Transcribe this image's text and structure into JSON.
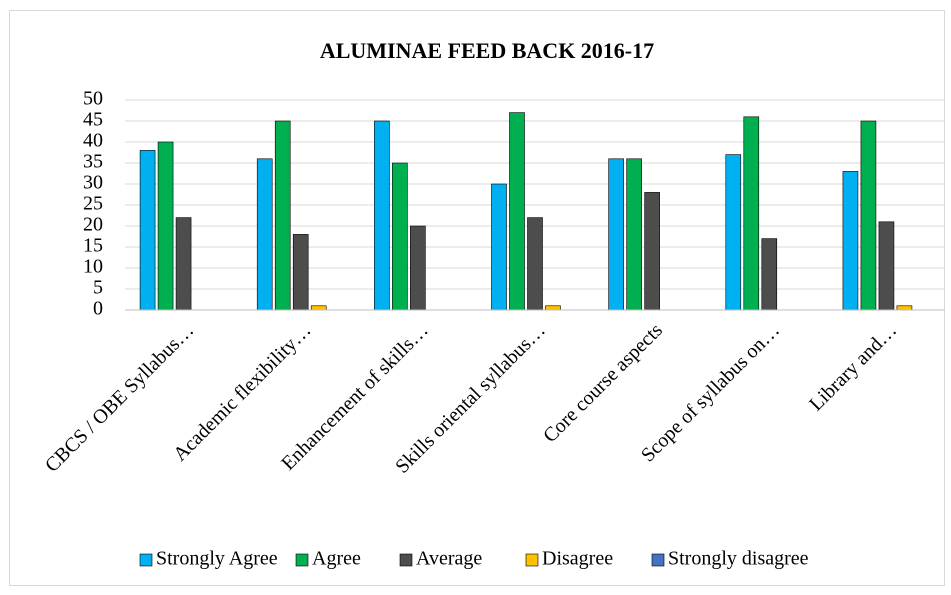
{
  "chart_data": {
    "type": "bar",
    "title": "ALUMINAE FEED BACK 2016-17",
    "categories": [
      "CBCS / OBE Syllabus…",
      "Academic flexibility…",
      "Enhancement of skills…",
      "Skills oriental syllabus…",
      "Core course aspects",
      "Scope of syllabus on…",
      "Library and…"
    ],
    "series": [
      {
        "name": "Strongly Agree",
        "color": "#00b0f0",
        "values": [
          38,
          36,
          45,
          30,
          36,
          37,
          33
        ]
      },
      {
        "name": "Agree",
        "color": "#00b050",
        "values": [
          40,
          45,
          35,
          47,
          36,
          46,
          45
        ]
      },
      {
        "name": "Average",
        "color": "#4d4d4d",
        "values": [
          22,
          18,
          20,
          22,
          28,
          17,
          21
        ]
      },
      {
        "name": "Disagree",
        "color": "#ffc000",
        "values": [
          0,
          1,
          0,
          1,
          0,
          0,
          1
        ]
      },
      {
        "name": "Strongly disagree",
        "color": "#4472c4",
        "values": [
          0,
          0,
          0,
          0,
          0,
          0,
          0
        ]
      }
    ],
    "ylim": [
      0,
      50
    ],
    "yticks": [
      0,
      5,
      10,
      15,
      20,
      25,
      30,
      35,
      40,
      45,
      50
    ],
    "grid": true,
    "legend": "bottom"
  }
}
